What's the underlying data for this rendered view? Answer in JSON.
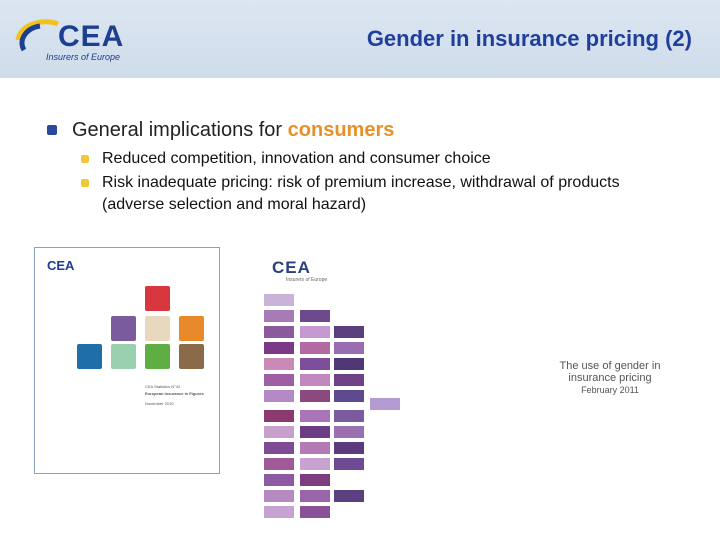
{
  "header": {
    "title": "Gender in insurance pricing (2)",
    "logo_text": "CEA",
    "logo_tagline": "Insurers of Europe",
    "logo_icon": "cea-swoosh-logo"
  },
  "content": {
    "main_bullet_prefix": "General implications for ",
    "main_bullet_highlight": "consumers",
    "sub_bullets": [
      "Reduced competition, innovation and consumer choice",
      "Risk inadequate pricing: risk of premium increase, withdrawal of products (adverse selection and moral hazard)"
    ]
  },
  "left_report": {
    "logo_text": "CEA",
    "line1": "CEA Statistics N°42",
    "line2": "European Insurance in Figures",
    "line3": "November 2010"
  },
  "right_cover": {
    "logo_text": "CEA",
    "tagline": "Insurers of Europe",
    "title_line1": "The use of gender in",
    "title_line2": "insurance pricing",
    "date": "February 2011"
  },
  "colors": {
    "title": "#1f3f9a",
    "highlight": "#e8902a",
    "sub_bullet": "#f0c838",
    "main_bullet": "#2b4a9a"
  }
}
